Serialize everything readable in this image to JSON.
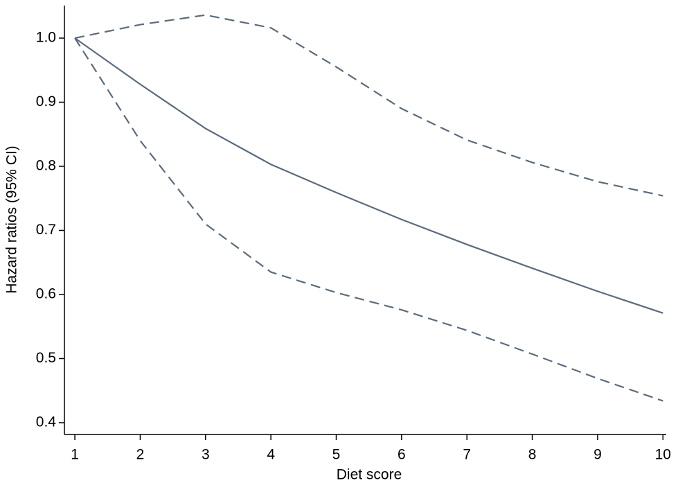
{
  "chart_data": {
    "type": "line",
    "x_label": "Diet score",
    "y_label": "Hazard ratios (95% CI)",
    "x": [
      1,
      2,
      3,
      4,
      5,
      6,
      7,
      8,
      9,
      10
    ],
    "series": [
      {
        "color": "#5b6b7c",
        "style": "solid",
        "values": [
          1.0,
          0.928,
          0.859,
          0.803,
          0.759,
          0.717,
          0.678,
          0.641,
          0.605,
          0.571
        ]
      },
      {
        "color": "#5b6b7c",
        "style": "dashed",
        "values": [
          1.0,
          1.021,
          1.036,
          1.016,
          0.955,
          0.89,
          0.841,
          0.806,
          0.776,
          0.754
        ]
      },
      {
        "color": "#5b6b7c",
        "style": "dashed",
        "values": [
          1.0,
          0.84,
          0.71,
          0.635,
          0.603,
          0.576,
          0.544,
          0.507,
          0.469,
          0.434
        ]
      }
    ],
    "xlim": [
      0.84,
      10.05
    ],
    "ylim": [
      0.3816,
      1.0508
    ],
    "xticks": [
      1,
      2,
      3,
      4,
      5,
      6,
      7,
      8,
      9,
      10
    ],
    "yticks": [
      0.4,
      0.5,
      0.6,
      0.7,
      0.8,
      0.9,
      {
        "value": 1,
        "label": "1.0"
      }
    ],
    "grid": false
  }
}
